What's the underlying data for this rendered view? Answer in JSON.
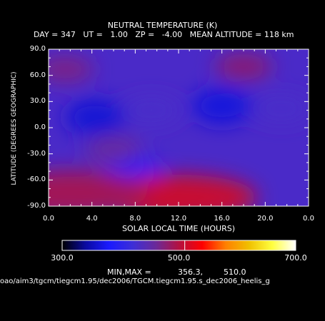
{
  "chart_data": {
    "type": "heatmap",
    "title": "NEUTRAL TEMPERATURE (K)",
    "subtitle": "DAY = 347   UT =   1.00   ZP =   -4.00   MEAN ALTITUDE = 118 km",
    "xlabel": "SOLAR LOCAL TIME (HOURS)",
    "ylabel": "LATITUDE (DEGREES GEOGRAPHIC)",
    "x_ticks": [
      "0.0",
      "4.0",
      "8.0",
      "12.0",
      "16.0",
      "20.0",
      "0.0"
    ],
    "y_ticks": [
      "90.0",
      "60.0",
      "30.0",
      "0.0",
      "-30.0",
      "-60.0",
      "-90.0"
    ],
    "xlim": [
      0,
      24
    ],
    "ylim": [
      -90,
      90
    ],
    "colorbar": {
      "range": [
        300,
        700
      ],
      "ticks": [
        "300.0",
        "500.0",
        "700.0"
      ],
      "stops": [
        "#000000",
        "#0a0aa0",
        "#1a1aff",
        "#3c2ed8",
        "#6a2a9a",
        "#b41040",
        "#ff0000",
        "#ff8000",
        "#f0c000",
        "#ffff40",
        "#ffffff"
      ]
    },
    "minmax_label": "MIN,MAX =",
    "min_value": "356.3,",
    "max_value": "510.0",
    "features": [
      {
        "lt": 4.3,
        "lat": 12,
        "temp": 362,
        "kind": "cold"
      },
      {
        "lt": 16.0,
        "lat": 25,
        "temp": 365,
        "kind": "cold"
      },
      {
        "lt": 7.8,
        "lat": -55,
        "temp": 385,
        "kind": "cold"
      },
      {
        "lt": 9.5,
        "lat": 20,
        "temp": 430,
        "kind": "warm"
      },
      {
        "lt": 21.5,
        "lat": 22,
        "temp": 430,
        "kind": "warm"
      },
      {
        "lt": 1.5,
        "lat": 67,
        "temp": 470,
        "kind": "warm"
      },
      {
        "lt": 18.0,
        "lat": 70,
        "temp": 478,
        "kind": "warm"
      },
      {
        "lt": 12.0,
        "lat": -80,
        "temp": 510,
        "kind": "warm"
      },
      {
        "lt": 2.0,
        "lat": -75,
        "temp": 490,
        "kind": "warm"
      },
      {
        "lt": 6.0,
        "lat": -25,
        "temp": 460,
        "kind": "warm"
      }
    ]
  },
  "footer_path": "oao/aim3/tgcm/tiegcm1.95/dec2006/TGCM.tiegcm1.95.s_dec2006_heelis_g"
}
